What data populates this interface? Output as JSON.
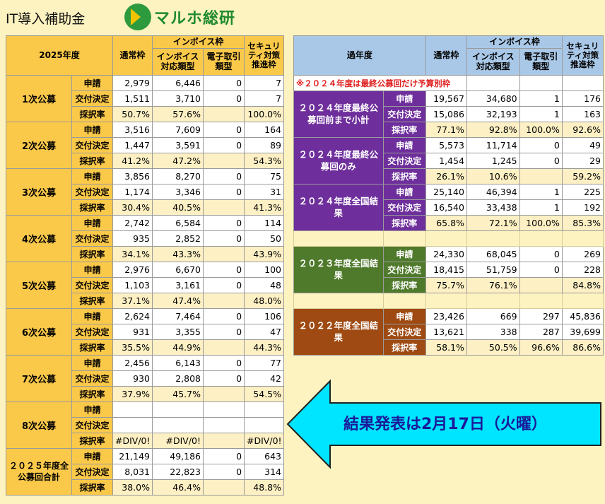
{
  "title": "IT導入補助金",
  "logo_text": "マルホ総研",
  "left": {
    "corner": "2025年度",
    "headers": {
      "tsujo": "通常枠",
      "invoice_group": "インボイス枠",
      "invoice": "インボイス対応類型",
      "denshi": "電子取引類型",
      "security": "セキュリティ対策推進枠"
    },
    "labels": {
      "apply": "申請",
      "grant": "交付決定",
      "rate": "採択率"
    },
    "rounds": [
      {
        "name": "1次公募",
        "apply": [
          "2,979",
          "6,446",
          "0",
          "7"
        ],
        "grant": [
          "1,511",
          "3,710",
          "0",
          "7"
        ],
        "rate": [
          "50.7%",
          "57.6%",
          "",
          "100.0%"
        ]
      },
      {
        "name": "2次公募",
        "apply": [
          "3,516",
          "7,609",
          "0",
          "164"
        ],
        "grant": [
          "1,447",
          "3,591",
          "0",
          "89"
        ],
        "rate": [
          "41.2%",
          "47.2%",
          "",
          "54.3%"
        ]
      },
      {
        "name": "3次公募",
        "apply": [
          "3,856",
          "8,270",
          "0",
          "75"
        ],
        "grant": [
          "1,174",
          "3,346",
          "0",
          "31"
        ],
        "rate": [
          "30.4%",
          "40.5%",
          "",
          "41.3%"
        ]
      },
      {
        "name": "4次公募",
        "apply": [
          "2,742",
          "6,584",
          "0",
          "114"
        ],
        "grant": [
          "935",
          "2,852",
          "0",
          "50"
        ],
        "rate": [
          "34.1%",
          "43.3%",
          "",
          "43.9%"
        ]
      },
      {
        "name": "5次公募",
        "apply": [
          "2,976",
          "6,670",
          "0",
          "100"
        ],
        "grant": [
          "1,103",
          "3,161",
          "0",
          "48"
        ],
        "rate": [
          "37.1%",
          "47.4%",
          "",
          "48.0%"
        ]
      },
      {
        "name": "6次公募",
        "apply": [
          "2,624",
          "7,464",
          "0",
          "106"
        ],
        "grant": [
          "931",
          "3,355",
          "0",
          "47"
        ],
        "rate": [
          "35.5%",
          "44.9%",
          "",
          "44.3%"
        ]
      },
      {
        "name": "7次公募",
        "apply": [
          "2,456",
          "6,143",
          "0",
          "77"
        ],
        "grant": [
          "930",
          "2,808",
          "0",
          "42"
        ],
        "rate": [
          "37.9%",
          "45.7%",
          "",
          "54.5%"
        ]
      },
      {
        "name": "8次公募",
        "apply": [
          "",
          "",
          "",
          ""
        ],
        "grant": [
          "",
          "",
          "",
          ""
        ],
        "rate": [
          "#DIV/0!",
          "#DIV/0!",
          "",
          "#DIV/0!"
        ]
      },
      {
        "name": "２０２５年度全公募回合計",
        "apply": [
          "21,149",
          "49,186",
          "0",
          "643"
        ],
        "grant": [
          "8,031",
          "22,823",
          "0",
          "314"
        ],
        "rate": [
          "38.0%",
          "46.4%",
          "",
          "48.8%"
        ]
      }
    ]
  },
  "right": {
    "corner": "過年度",
    "headers": {
      "tsujo": "通常枠",
      "invoice_group": "インボイス枠",
      "invoice": "インボイス対応類型",
      "denshi": "電子取引類型",
      "security": "セキュリティ対策推進枠"
    },
    "note": "※２０２４年度は最終公募回だけ予算別枠",
    "labels": {
      "apply": "申請",
      "grant": "交付決定",
      "rate": "採択率"
    },
    "groups": [
      {
        "name": "２０２４年度最終公募回前まで小計",
        "apply": [
          "19,567",
          "34,680",
          "1",
          "176"
        ],
        "grant": [
          "15,086",
          "32,193",
          "1",
          "163"
        ],
        "rate": [
          "77.1%",
          "92.8%",
          "100.0%",
          "92.6%"
        ]
      },
      {
        "name": "２０２４年度最終公募回のみ",
        "apply": [
          "5,573",
          "11,714",
          "0",
          "49"
        ],
        "grant": [
          "1,454",
          "1,245",
          "0",
          "29"
        ],
        "rate": [
          "26.1%",
          "10.6%",
          "",
          "59.2%"
        ]
      },
      {
        "name": "２０２４年度全国結果",
        "apply": [
          "25,140",
          "46,394",
          "1",
          "225"
        ],
        "grant": [
          "16,540",
          "33,438",
          "1",
          "192"
        ],
        "rate": [
          "65.8%",
          "72.1%",
          "100.0%",
          "85.3%"
        ]
      },
      {
        "name": "２０２３年度全国結果",
        "apply": [
          "24,330",
          "68,045",
          "0",
          "269"
        ],
        "grant": [
          "18,415",
          "51,759",
          "0",
          "228"
        ],
        "rate": [
          "75.7%",
          "76.1%",
          "",
          "84.8%"
        ]
      },
      {
        "name": "２０２２年度全国結果",
        "apply": [
          "23,426",
          "669",
          "297",
          "45,836"
        ],
        "grant": [
          "13,621",
          "338",
          "287",
          "39,699"
        ],
        "rate": [
          "58.1%",
          "50.5%",
          "96.6%",
          "86.6%"
        ]
      }
    ]
  },
  "announcement": "結果発表は2月17日（火曜）",
  "colors": {
    "orange": "#fbc94a",
    "purple": "#6e2f9c",
    "green": "#4f7a2b",
    "brown": "#9e4a12",
    "blue_header": "#a9c8e8",
    "arrow": "#00e5ff"
  }
}
